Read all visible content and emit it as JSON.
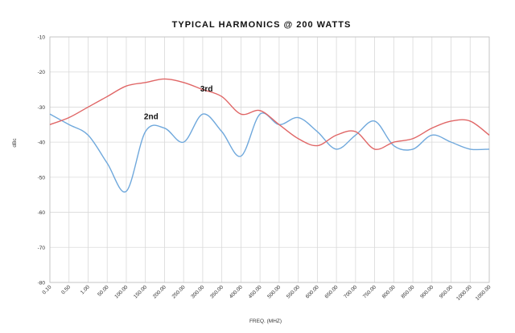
{
  "chart_data": {
    "type": "line",
    "title": "TYPICAL HARMONICS @ 200 WATTS",
    "xlabel": "FREQ. (MHZ)",
    "ylabel": "dBc",
    "ylim": [
      -80,
      -10
    ],
    "yticks": [
      "-10",
      "-20",
      "-30",
      "-40",
      "-50",
      "-60",
      "-70",
      "-80"
    ],
    "categories": [
      "0.10",
      "0.50",
      "1.00",
      "50.00",
      "100.00",
      "150.00",
      "200.00",
      "250.00",
      "300.00",
      "350.00",
      "400.00",
      "450.00",
      "500.00",
      "550.00",
      "600.00",
      "650.00",
      "700.00",
      "750.00",
      "800.00",
      "850.00",
      "900.00",
      "950.00",
      "1000.00",
      "1050.00"
    ],
    "grid": true,
    "legend": "none",
    "series": [
      {
        "name": "2nd",
        "color": "#6fa8dc",
        "values": [
          -32,
          -35,
          -38,
          -46,
          -54,
          -37,
          -36,
          -40,
          -32,
          -37,
          -44,
          -32,
          -35,
          -33,
          -37,
          -42,
          -38,
          -34,
          -41,
          -42,
          -38,
          -40,
          -42,
          -42
        ]
      },
      {
        "name": "3rd",
        "color": "#e06666",
        "values": [
          -35,
          -33,
          -30,
          -27,
          -24,
          -23,
          -22,
          -23,
          -25,
          -27,
          -32,
          -31,
          -35,
          -39,
          -41,
          -38,
          -37,
          -42,
          -40,
          -39,
          -36,
          -34,
          -34,
          -38
        ]
      }
    ],
    "annotations": [
      {
        "text": "3rd",
        "x_index": 8.2,
        "y": -25.5
      },
      {
        "text": "2nd",
        "x_index": 5.3,
        "y": -33.5
      }
    ]
  }
}
